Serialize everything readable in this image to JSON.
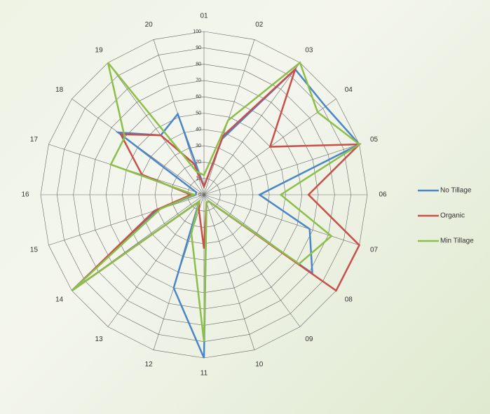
{
  "chart_data": {
    "type": "radar",
    "categories": [
      "01",
      "02",
      "03",
      "04",
      "05",
      "06",
      "07",
      "08",
      "09",
      "10",
      "11",
      "12",
      "13",
      "14",
      "15",
      "16",
      "17",
      "18",
      "19",
      "20"
    ],
    "ylim": [
      0,
      100
    ],
    "yticks": [
      0,
      10,
      20,
      30,
      40,
      50,
      60,
      70,
      80,
      90,
      100
    ],
    "grid": true,
    "legend": "right",
    "series": [
      {
        "name": "No Tillage",
        "color": "#4a86c8",
        "values": [
          5,
          36,
          95,
          92,
          100,
          34,
          68,
          82,
          5,
          5,
          100,
          60,
          5,
          100,
          30,
          5,
          5,
          65,
          45,
          52
        ]
      },
      {
        "name": "Organic",
        "color": "#c9504a",
        "values": [
          5,
          38,
          95,
          50,
          100,
          64,
          100,
          100,
          5,
          5,
          33,
          10,
          5,
          100,
          32,
          8,
          40,
          63,
          45,
          20
        ]
      },
      {
        "name": "Min Tillage",
        "color": "#8cbf4a",
        "values": [
          12,
          48,
          100,
          86,
          100,
          47,
          82,
          72,
          5,
          5,
          90,
          25,
          5,
          100,
          28,
          6,
          60,
          60,
          100,
          15
        ]
      }
    ]
  }
}
